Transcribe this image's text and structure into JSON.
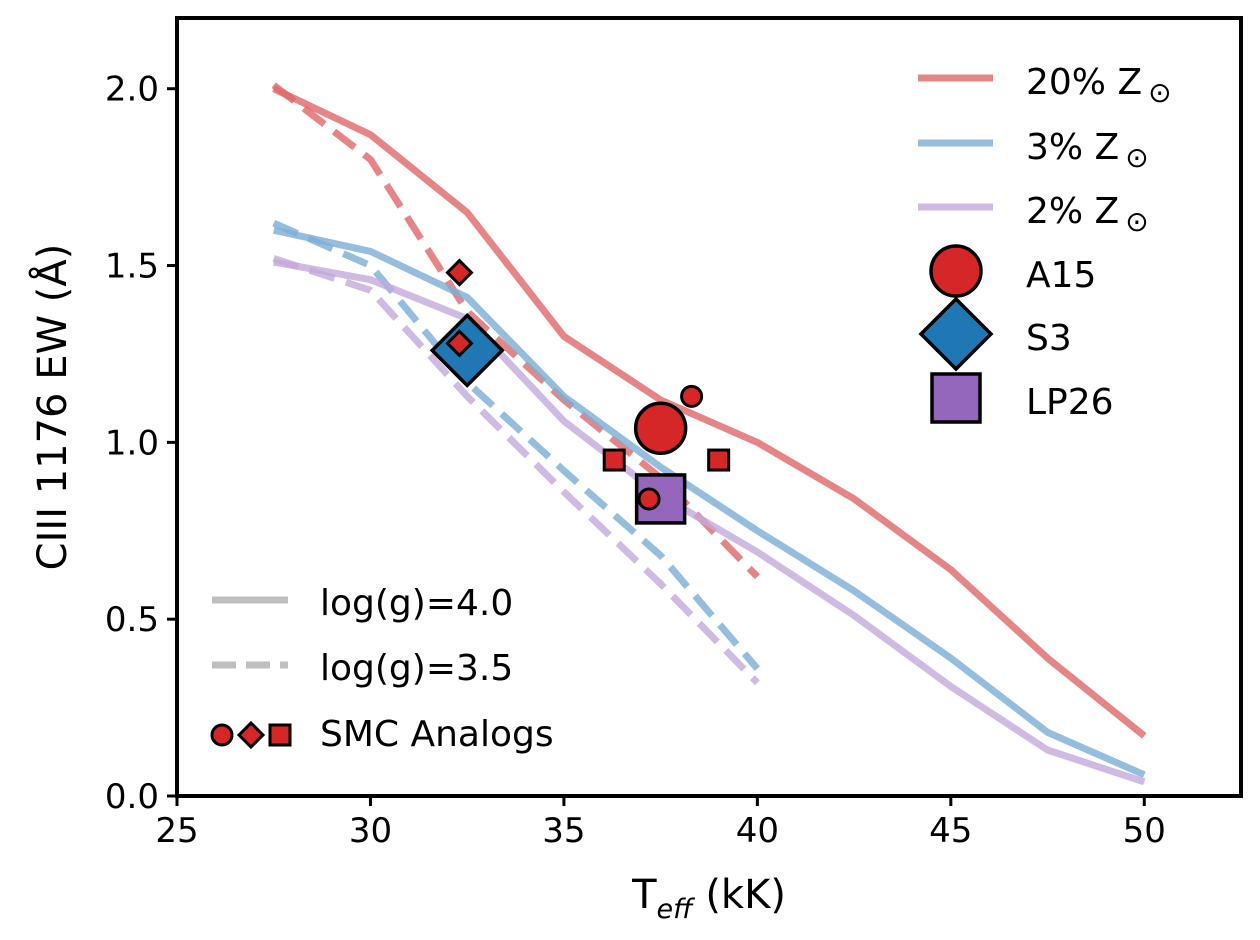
{
  "chart_data": {
    "type": "line",
    "xlabel_main": "T",
    "xlabel_sub": "eff",
    "xlabel_unit": " (kK)",
    "ylabel": "CIII 1176 EW (Å)",
    "xlim": [
      25,
      52.5
    ],
    "ylim": [
      0,
      2.2
    ],
    "xticks": [
      25,
      30,
      35,
      40,
      45,
      50
    ],
    "xtick_labels": [
      "25",
      "30",
      "35",
      "40",
      "45",
      "50"
    ],
    "yticks": [
      0.0,
      0.5,
      1.0,
      1.5,
      2.0
    ],
    "ytick_labels": [
      "0.0",
      "0.5",
      "1.0",
      "1.5",
      "2.0"
    ],
    "series": [
      {
        "name": "20% Z⊙ log(g)=4.0",
        "metallicity": "20%",
        "style": "solid",
        "color": "#e06666",
        "x": [
          27.5,
          30,
          32.5,
          35,
          37.5,
          40,
          42.5,
          45,
          47.5,
          50
        ],
        "y": [
          2.0,
          1.87,
          1.65,
          1.3,
          1.12,
          1.0,
          0.84,
          0.64,
          0.39,
          0.17
        ]
      },
      {
        "name": "20% Z⊙ log(g)=3.5",
        "metallicity": "20%",
        "style": "dashed",
        "color": "#e06666",
        "x": [
          27.5,
          30,
          32.5,
          35,
          37.5,
          40
        ],
        "y": [
          2.01,
          1.8,
          1.37,
          1.12,
          0.9,
          0.62
        ]
      },
      {
        "name": "3% Z⊙ log(g)=4.0",
        "metallicity": "3%",
        "style": "solid",
        "color": "#7aaed6",
        "x": [
          27.5,
          30,
          32.5,
          35,
          37.5,
          40,
          42.5,
          45,
          47.5,
          50
        ],
        "y": [
          1.6,
          1.54,
          1.41,
          1.13,
          0.93,
          0.75,
          0.58,
          0.39,
          0.18,
          0.06
        ]
      },
      {
        "name": "3% Z⊙ log(g)=3.5",
        "metallicity": "3%",
        "style": "dashed",
        "color": "#7aaed6",
        "x": [
          27.5,
          30,
          32.5,
          35,
          37.5,
          40
        ],
        "y": [
          1.62,
          1.5,
          1.17,
          0.92,
          0.68,
          0.36
        ]
      },
      {
        "name": "2% Z⊙ log(g)=4.0",
        "metallicity": "2%",
        "style": "solid",
        "color": "#c3a9dc",
        "x": [
          27.5,
          30,
          32.5,
          35,
          37.5,
          40,
          42.5,
          45,
          47.5,
          50
        ],
        "y": [
          1.51,
          1.46,
          1.35,
          1.06,
          0.85,
          0.69,
          0.51,
          0.31,
          0.13,
          0.04
        ]
      },
      {
        "name": "2% Z⊙ log(g)=3.5",
        "metallicity": "2%",
        "style": "dashed",
        "color": "#c3a9dc",
        "x": [
          27.5,
          30,
          32.5,
          35,
          37.5,
          40
        ],
        "y": [
          1.52,
          1.43,
          1.13,
          0.86,
          0.6,
          0.32
        ]
      }
    ],
    "points": [
      {
        "name": "A15",
        "marker": "circle",
        "size": "large",
        "color": "#d62728",
        "x": 37.5,
        "y": 1.04
      },
      {
        "name": "S3",
        "marker": "diamond",
        "size": "large",
        "color": "#1f77b4",
        "x": 32.5,
        "y": 1.26
      },
      {
        "name": "LP26",
        "marker": "square",
        "size": "large",
        "color": "#9467bd",
        "x": 37.5,
        "y": 0.84
      },
      {
        "name": "SMC analog circle 1",
        "marker": "circle",
        "size": "small",
        "color": "#d62728",
        "x": 38.3,
        "y": 1.13
      },
      {
        "name": "SMC analog circle 2",
        "marker": "circle",
        "size": "small",
        "color": "#d62728",
        "x": 37.2,
        "y": 0.84
      },
      {
        "name": "SMC analog diamond 1",
        "marker": "diamond",
        "size": "small",
        "color": "#d62728",
        "x": 32.3,
        "y": 1.48
      },
      {
        "name": "SMC analog diamond 2",
        "marker": "diamond",
        "size": "small",
        "color": "#d62728",
        "x": 32.3,
        "y": 1.28
      },
      {
        "name": "SMC analog square 1",
        "marker": "square",
        "size": "small",
        "color": "#d62728",
        "x": 36.3,
        "y": 0.95
      },
      {
        "name": "SMC analog square 2",
        "marker": "square",
        "size": "small",
        "color": "#d62728",
        "x": 39.0,
        "y": 0.95
      }
    ],
    "legend_upper": {
      "placement": "top-right",
      "entries": [
        {
          "label": "20% Z",
          "sym": "⊙",
          "kind": "line",
          "color": "#e06666"
        },
        {
          "label": "3% Z",
          "sym": "⊙",
          "kind": "line",
          "color": "#7aaed6"
        },
        {
          "label": "2% Z",
          "sym": "⊙",
          "kind": "line",
          "color": "#c3a9dc"
        },
        {
          "label": "A15",
          "kind": "circle",
          "color": "#d62728"
        },
        {
          "label": "S3",
          "kind": "diamond",
          "color": "#1f77b4"
        },
        {
          "label": "LP26",
          "kind": "square",
          "color": "#9467bd"
        }
      ]
    },
    "legend_lower": {
      "placement": "bottom-left",
      "entries": [
        {
          "label": "log(g)=4.0",
          "kind": "solid",
          "color": "#bfbfbf"
        },
        {
          "label": "log(g)=3.5",
          "kind": "dashed",
          "color": "#bfbfbf"
        },
        {
          "label": "SMC Analogs",
          "kind": "analogs",
          "color": "#d62728"
        }
      ]
    }
  }
}
